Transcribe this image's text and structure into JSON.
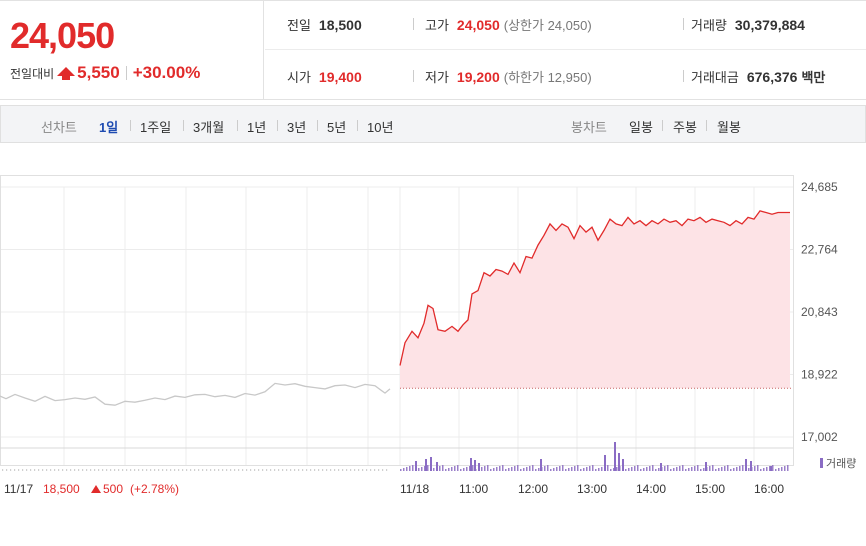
{
  "summary": {
    "price": "24,050",
    "change_label": "전일대비",
    "change_value": "5,550",
    "change_pct": "+30.00%",
    "prev_close": {
      "label": "전일",
      "value": "18,500"
    },
    "open": {
      "label": "시가",
      "value": "19,400"
    },
    "high": {
      "label": "고가",
      "value": "24,050",
      "sub": "(상한가 24,050)"
    },
    "low": {
      "label": "저가",
      "value": "19,200",
      "sub": "(하한가 12,950)"
    },
    "volume": {
      "label": "거래량",
      "value": "30,379,884"
    },
    "amount": {
      "label": "거래대금",
      "value": "676,376",
      "unit": "백만"
    }
  },
  "period_bar": {
    "line_label": "선차트",
    "line_items": [
      "1일",
      "1주일",
      "3개월",
      "1년",
      "3년",
      "5년",
      "10년"
    ],
    "active": "1일",
    "candle_label": "봉차트",
    "candle_items": [
      "일봉",
      "주봉",
      "월봉"
    ]
  },
  "chart_data": {
    "type": "area",
    "y_ticks": [
      "24,685",
      "22,764",
      "20,843",
      "18,922",
      "17,002"
    ],
    "ylim": [
      17002,
      24685
    ],
    "grid": true,
    "prev_close": 18500,
    "x_ticks": [
      "11/18",
      "11:00",
      "12:00",
      "13:00",
      "14:00",
      "15:00",
      "16:00"
    ],
    "prev_day_label": {
      "date": "11/17",
      "price": "18,500",
      "change": "500",
      "pct": "(+2.78%)"
    },
    "volume_legend": "거래량",
    "series": [
      {
        "x": [
          0,
          6,
          15,
          25,
          35,
          45,
          55,
          65,
          75,
          85,
          95,
          105,
          115,
          125,
          135,
          145,
          155,
          165,
          175,
          185,
          195,
          205,
          215,
          225,
          235,
          245,
          255,
          265,
          275,
          285,
          295,
          305,
          315,
          325,
          335,
          345,
          355,
          365,
          375,
          385,
          390
        ],
        "values": [
          18260,
          18180,
          18310,
          18200,
          18100,
          18250,
          18120,
          18150,
          18200,
          18160,
          18230,
          18010,
          17980,
          18100,
          18070,
          18130,
          18200,
          18150,
          18260,
          18220,
          18300,
          18310,
          18240,
          18280,
          18220,
          18340,
          18290,
          18390,
          18650,
          18600,
          18640,
          18560,
          18520,
          18480,
          18580,
          18600,
          18520,
          18620,
          18580,
          18350,
          18480
        ],
        "colors": {
          "line": "#c8c8c8"
        }
      },
      {
        "x": [
          400,
          405,
          412,
          418,
          424,
          428,
          433,
          438,
          445,
          452,
          458,
          463,
          468,
          472,
          478,
          484,
          490,
          496,
          502,
          508,
          514,
          520,
          526,
          532,
          538,
          544,
          550,
          556,
          562,
          568,
          574,
          580,
          586,
          592,
          598,
          604,
          610,
          616,
          622,
          628,
          634,
          640,
          646,
          652,
          658,
          664,
          670,
          676,
          682,
          688,
          694,
          700,
          706,
          712,
          718,
          724,
          730,
          736,
          742,
          748,
          754,
          760,
          766,
          772,
          778,
          784,
          790
        ],
        "values": [
          19200,
          19900,
          20250,
          20050,
          20500,
          21050,
          20950,
          20300,
          20250,
          20400,
          20250,
          20450,
          20600,
          21400,
          21500,
          22050,
          21950,
          22150,
          22100,
          22000,
          22350,
          22050,
          22550,
          22500,
          22900,
          23200,
          23550,
          23350,
          23550,
          23450,
          23100,
          23500,
          23300,
          23450,
          23050,
          23350,
          23700,
          23550,
          23500,
          23750,
          23550,
          23650,
          23500,
          23650,
          23550,
          23700,
          23600,
          23650,
          23500,
          23700,
          23650,
          23750,
          23600,
          23700,
          23650,
          23600,
          23500,
          23650,
          23550,
          23750,
          23700,
          23950,
          23900,
          23850,
          23900,
          23900,
          23900
        ],
        "colors": {
          "line": "#e12b2b",
          "fill": "#fde3e6"
        }
      }
    ],
    "volume": {
      "x": [
        415,
        425,
        430,
        436,
        470,
        474,
        478,
        540,
        604,
        614,
        618,
        622,
        660,
        705,
        745,
        750,
        770
      ],
      "values": [
        10,
        12,
        14,
        9,
        13,
        11,
        8,
        12,
        16,
        29,
        18,
        12,
        8,
        9,
        12,
        10,
        5
      ]
    }
  }
}
